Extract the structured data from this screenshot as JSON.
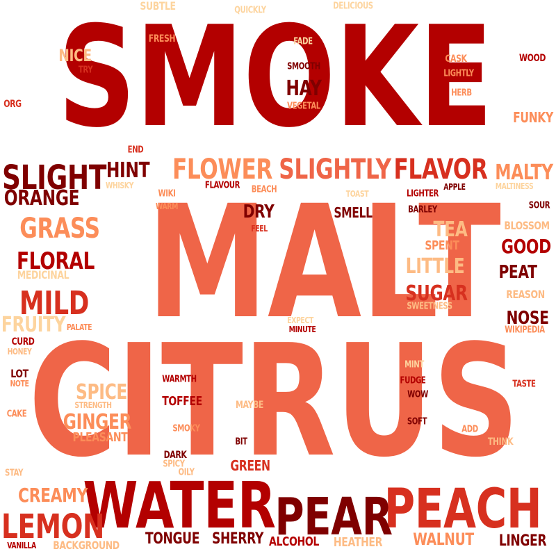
{
  "palette": {
    "dark_red": "#b30000",
    "maroon": "#7f0000",
    "red": "#d7301f",
    "coral": "#ef6548",
    "salmon": "#fc8d59",
    "peach": "#fdbb84",
    "pale": "#fdd49e"
  },
  "words": [
    {
      "text": "SMOKE",
      "color": "#b30000"
    },
    {
      "text": "MALT",
      "color": "#ef6548"
    },
    {
      "text": "CITRUS",
      "color": "#ef6548"
    },
    {
      "text": "WATER",
      "color": "#b30000"
    },
    {
      "text": "PEACH",
      "color": "#d7301f"
    },
    {
      "text": "PEAR",
      "color": "#7f0000"
    },
    {
      "text": "LEMON",
      "color": "#d7301f"
    },
    {
      "text": "SLIGHT",
      "color": "#7f0000"
    },
    {
      "text": "FLOWER",
      "color": "#fc8d59"
    },
    {
      "text": "SLIGHTLY",
      "color": "#ef6548"
    },
    {
      "text": "FLAVOR",
      "color": "#d7301f"
    },
    {
      "text": "GRASS",
      "color": "#fc8d59"
    },
    {
      "text": "MILD",
      "color": "#d7301f"
    },
    {
      "text": "FLORAL",
      "color": "#b30000"
    },
    {
      "text": "ORANGE",
      "color": "#7f0000"
    },
    {
      "text": "HINT",
      "color": "#7f0000"
    },
    {
      "text": "HAY",
      "color": "#7f0000"
    },
    {
      "text": "MALTY",
      "color": "#fc8d59"
    },
    {
      "text": "SUGAR",
      "color": "#d7301f"
    },
    {
      "text": "LITTLE",
      "color": "#fdbb84"
    },
    {
      "text": "TEA",
      "color": "#fdbb84"
    },
    {
      "text": "GOOD",
      "color": "#b30000"
    },
    {
      "text": "PEAT",
      "color": "#7f0000"
    },
    {
      "text": "NOSE",
      "color": "#7f0000"
    },
    {
      "text": "DRY",
      "color": "#7f0000"
    },
    {
      "text": "CREAMY",
      "color": "#fc8d59"
    },
    {
      "text": "GINGER",
      "color": "#fc8d59"
    },
    {
      "text": "SPICE",
      "color": "#fdbb84"
    },
    {
      "text": "FRUITY",
      "color": "#fdd49e"
    },
    {
      "text": "TONGUE",
      "color": "#7f0000"
    },
    {
      "text": "SHERRY",
      "color": "#7f0000"
    },
    {
      "text": "WALNUT",
      "color": "#fc8d59"
    },
    {
      "text": "LINGER",
      "color": "#7f0000"
    },
    {
      "text": "NICE",
      "color": "#fdbb84"
    },
    {
      "text": "FUNKY",
      "color": "#fc8d59"
    },
    {
      "text": "SMELL",
      "color": "#7f0000"
    },
    {
      "text": "TOFFEE",
      "color": "#b30000"
    },
    {
      "text": "GREEN",
      "color": "#d7301f"
    },
    {
      "text": "PLEASANT",
      "color": "#fc8d59"
    },
    {
      "text": "ALCOHOL",
      "color": "#b30000"
    },
    {
      "text": "HEATHER",
      "color": "#fdbb84"
    },
    {
      "text": "BACKGROUND",
      "color": "#fdbb84"
    },
    {
      "text": "MEDICINAL",
      "color": "#fdd49e"
    },
    {
      "text": "SPENT",
      "color": "#fc8d59"
    },
    {
      "text": "BLOSSOM",
      "color": "#fdbb84"
    },
    {
      "text": "REASON",
      "color": "#fdbb84"
    },
    {
      "text": "WIKIPEDIA",
      "color": "#fc8d59"
    },
    {
      "text": "SWEETNESS",
      "color": "#fdbb84"
    },
    {
      "text": "SUBTLE",
      "color": "#fdd49e"
    },
    {
      "text": "QUICKLY",
      "color": "#fdd49e"
    },
    {
      "text": "DELICIOUS",
      "color": "#fdd49e"
    },
    {
      "text": "FRESH",
      "color": "#fc8d59"
    },
    {
      "text": "FADE",
      "color": "#fdd49e"
    },
    {
      "text": "CASK",
      "color": "#fc8d59"
    },
    {
      "text": "WOOD",
      "color": "#b30000"
    },
    {
      "text": "TRY",
      "color": "#d7301f"
    },
    {
      "text": "SMOOTH",
      "color": "#7f0000"
    },
    {
      "text": "LIGHTLY",
      "color": "#fc8d59"
    },
    {
      "text": "HERB",
      "color": "#fc8d59"
    },
    {
      "text": "ORG",
      "color": "#d7301f"
    },
    {
      "text": "VEGETAL",
      "color": "#fc8d59"
    },
    {
      "text": "END",
      "color": "#d7301f"
    },
    {
      "text": "WHISKY",
      "color": "#fdd49e"
    },
    {
      "text": "WIKI",
      "color": "#fc8d59"
    },
    {
      "text": "FLAVOUR",
      "color": "#b30000"
    },
    {
      "text": "BEACH",
      "color": "#fc8d59"
    },
    {
      "text": "TOAST",
      "color": "#fdd49e"
    },
    {
      "text": "LIGHTER",
      "color": "#b30000"
    },
    {
      "text": "APPLE",
      "color": "#7f0000"
    },
    {
      "text": "MALTINESS",
      "color": "#fdd49e"
    },
    {
      "text": "WARM",
      "color": "#fc8d59"
    },
    {
      "text": "BARLEY",
      "color": "#7f0000"
    },
    {
      "text": "SOUR",
      "color": "#7f0000"
    },
    {
      "text": "FEEL",
      "color": "#d7301f"
    },
    {
      "text": "EXPECT",
      "color": "#fdd49e"
    },
    {
      "text": "MINUTE",
      "color": "#b30000"
    },
    {
      "text": "PALATE",
      "color": "#fc8d59"
    },
    {
      "text": "CURD",
      "color": "#b30000"
    },
    {
      "text": "HONEY",
      "color": "#fdbb84"
    },
    {
      "text": "LOT",
      "color": "#7f0000"
    },
    {
      "text": "NOTE",
      "color": "#fc8d59"
    },
    {
      "text": "CAKE",
      "color": "#fc8d59"
    },
    {
      "text": "STRENGTH",
      "color": "#fdbb84"
    },
    {
      "text": "WARMTH",
      "color": "#b30000"
    },
    {
      "text": "MAYBE",
      "color": "#fdbb84"
    },
    {
      "text": "SMOKY",
      "color": "#fc8d59"
    },
    {
      "text": "BIT",
      "color": "#7f0000"
    },
    {
      "text": "DARK",
      "color": "#7f0000"
    },
    {
      "text": "SPICY",
      "color": "#fdbb84"
    },
    {
      "text": "OILY",
      "color": "#fdbb84"
    },
    {
      "text": "STAY",
      "color": "#fdbb84"
    },
    {
      "text": "VANILLA",
      "color": "#b30000"
    },
    {
      "text": "MINT",
      "color": "#fdd49e"
    },
    {
      "text": "FUDGE",
      "color": "#b30000"
    },
    {
      "text": "WOW",
      "color": "#7f0000"
    },
    {
      "text": "TASTE",
      "color": "#d7301f"
    },
    {
      "text": "SOFT",
      "color": "#7f0000"
    },
    {
      "text": "ADD",
      "color": "#fc8d59"
    },
    {
      "text": "THINK",
      "color": "#fdbb84"
    }
  ]
}
